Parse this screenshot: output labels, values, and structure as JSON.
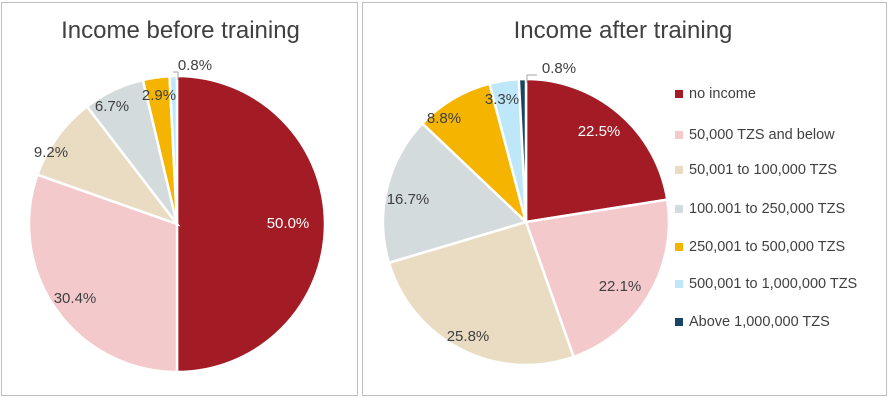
{
  "chart_data": [
    {
      "type": "pie",
      "title": "Income before training",
      "categories": [
        "no income",
        "50,000 TZS and below",
        "50,001 to 100,000 TZS",
        "100.001 to 250,000 TZS",
        "250,001 to 500,000 TZS",
        "500,001 to 1,000,000 TZS",
        "Above 1,000,000 TZS"
      ],
      "values": [
        50.0,
        30.4,
        9.2,
        6.7,
        2.9,
        0.8,
        0.0
      ],
      "labels": [
        "50.0%",
        "30.4%",
        "9.2%",
        "6.7%",
        "2.9%",
        "0.8%",
        ""
      ],
      "legend": "none"
    },
    {
      "type": "pie",
      "title": "Income after training",
      "categories": [
        "no income",
        "50,000 TZS and below",
        "50,001 to 100,000 TZS",
        "100.001 to 250,000 TZS",
        "250,001 to 500,000 TZS",
        "500,001 to 1,000,000 TZS",
        "Above 1,000,000 TZS"
      ],
      "values": [
        22.5,
        22.1,
        25.8,
        16.7,
        8.8,
        3.3,
        0.8
      ],
      "labels": [
        "22.5%",
        "22.1%",
        "25.8%",
        "16.7%",
        "8.8%",
        "3.3%",
        "0.8%"
      ],
      "legend": "right"
    }
  ],
  "colors": [
    "#a31b24",
    "#f3c9cc",
    "#e9dcc3",
    "#d4dbdc",
    "#f5b400",
    "#bfe7fa",
    "#1b4363"
  ],
  "label_colors": [
    "#ffffff",
    "#404040",
    "#404040",
    "#404040",
    "#404040",
    "#404040",
    "#404040"
  ],
  "legend": {
    "items": [
      "no income",
      "50,000 TZS and below",
      "50,001 to 100,000 TZS",
      "100.001 to 250,000 TZS",
      "250,001 to 500,000 TZS",
      "500,001 to 1,000,000 TZS",
      "Above 1,000,000 TZS"
    ]
  }
}
